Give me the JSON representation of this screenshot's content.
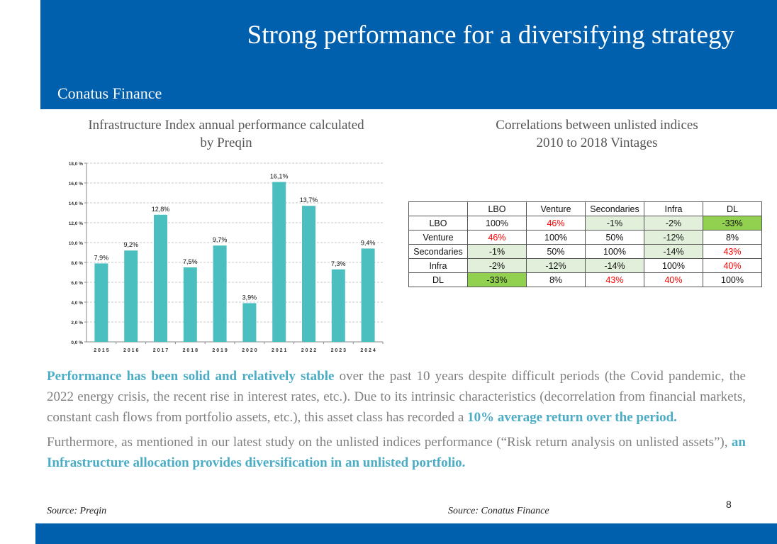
{
  "header": {
    "title": "Strong performance for a diversifying strategy",
    "brand": "Conatus Finance"
  },
  "chart_section": {
    "title_line1": "Infrastructure Index annual performance calculated",
    "title_line2": "by Preqin"
  },
  "chart_data": {
    "type": "bar",
    "categories": [
      "2015",
      "2016",
      "2017",
      "2018",
      "2019",
      "2020",
      "2021",
      "2022",
      "2023",
      "2024"
    ],
    "values": [
      7.9,
      9.2,
      12.8,
      7.5,
      9.7,
      3.9,
      16.1,
      13.7,
      7.3,
      9.4
    ],
    "data_labels": [
      "7,9%",
      "9,2%",
      "12,8%",
      "7,5%",
      "9,7%",
      "3,9%",
      "16,1%",
      "13,7%",
      "7,3%",
      "9,4%"
    ],
    "y_ticks": [
      0,
      2,
      4,
      6,
      8,
      10,
      12,
      14,
      16,
      18
    ],
    "y_tick_labels": [
      "0,0 %",
      "2,0 %",
      "4,0 %",
      "6,0 %",
      "8,0 %",
      "10,0 %",
      "12,0 %",
      "14,0 %",
      "16,0 %",
      "18,0 %"
    ],
    "ylim": [
      0,
      18
    ],
    "grid": true,
    "bar_color": "#4bbfbf"
  },
  "table_section": {
    "title_line1": "Correlations between unlisted indices",
    "title_line2": "2010 to 2018 Vintages",
    "columns": [
      "LBO",
      "Venture",
      "Secondaries",
      "Infra",
      "DL"
    ],
    "rows": [
      {
        "label": "LBO",
        "cells": [
          {
            "v": "100%",
            "bg": "",
            "red": false
          },
          {
            "v": "46%",
            "bg": "",
            "red": true
          },
          {
            "v": "-1%",
            "bg": "light",
            "red": false
          },
          {
            "v": "-2%",
            "bg": "light",
            "red": false
          },
          {
            "v": "-33%",
            "bg": "strong",
            "red": false
          }
        ]
      },
      {
        "label": "Venture",
        "cells": [
          {
            "v": "46%",
            "bg": "",
            "red": true
          },
          {
            "v": "100%",
            "bg": "",
            "red": false
          },
          {
            "v": "50%",
            "bg": "",
            "red": false
          },
          {
            "v": "-12%",
            "bg": "light",
            "red": false
          },
          {
            "v": "8%",
            "bg": "",
            "red": false
          }
        ]
      },
      {
        "label": "Secondaries",
        "cells": [
          {
            "v": "-1%",
            "bg": "light",
            "red": false
          },
          {
            "v": "50%",
            "bg": "",
            "red": false
          },
          {
            "v": "100%",
            "bg": "",
            "red": false
          },
          {
            "v": "-14%",
            "bg": "light",
            "red": false
          },
          {
            "v": "43%",
            "bg": "",
            "red": true
          }
        ]
      },
      {
        "label": "Infra",
        "cells": [
          {
            "v": "-2%",
            "bg": "light",
            "red": false
          },
          {
            "v": "-12%",
            "bg": "light",
            "red": false
          },
          {
            "v": "-14%",
            "bg": "light",
            "red": false
          },
          {
            "v": "100%",
            "bg": "",
            "red": false
          },
          {
            "v": "40%",
            "bg": "",
            "red": true
          }
        ]
      },
      {
        "label": "DL",
        "cells": [
          {
            "v": "-33%",
            "bg": "strong",
            "red": false
          },
          {
            "v": "8%",
            "bg": "",
            "red": false
          },
          {
            "v": "43%",
            "bg": "",
            "red": true
          },
          {
            "v": "40%",
            "bg": "",
            "red": true
          },
          {
            "v": "100%",
            "bg": "",
            "red": false
          }
        ]
      }
    ]
  },
  "body": {
    "p1_hl1": "Performance has been solid and relatively stable",
    "p1_text1": " over the past 10 years despite difficult periods (the Covid pandemic, the 2022 energy crisis, the recent rise in interest rates, etc.). Due to its intrinsic characteristics (decorrelation from financial markets, constant cash flows from portfolio assets, etc.), this asset class has recorded a ",
    "p1_hl2": "10% average return over the period.",
    "p2_text1": "Furthermore, as mentioned in our latest study on the unlisted indices performance (“Risk return analysis on unlisted assets”), ",
    "p2_hl1": "an Infrastructure allocation provides diversification in an unlisted portfolio."
  },
  "footer": {
    "source_left": "Source: Preqin",
    "source_right": "Source: Conatus Finance",
    "page_number": "8"
  }
}
